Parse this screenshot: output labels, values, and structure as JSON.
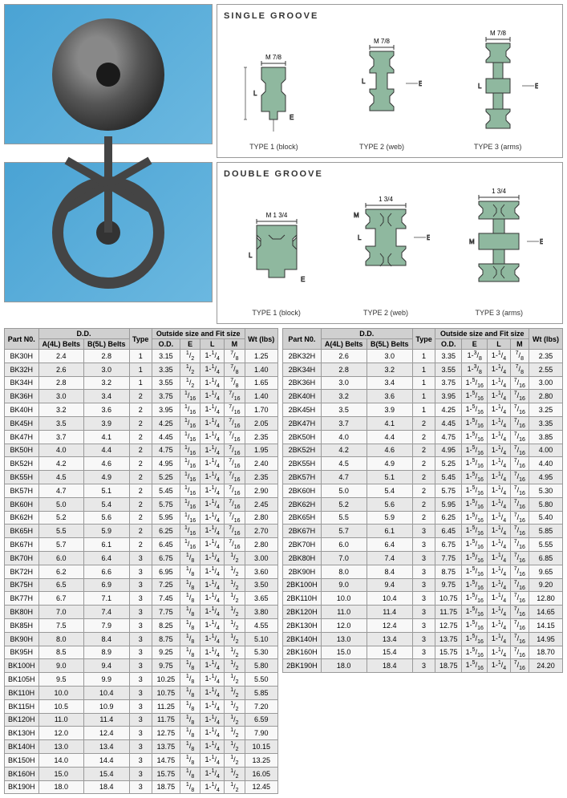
{
  "diagrams": {
    "single_title": "SINGLE GROOVE",
    "double_title": "DOUBLE GROOVE",
    "type1": "TYPE 1 (block)",
    "type2": "TYPE 2 (web)",
    "type3": "TYPE 3 (arms)",
    "M_single": "M 7/8",
    "M_double_t1": "1 3/4",
    "M_double_t2": "1 3/4",
    "M_double_t3": "1 3/4"
  },
  "headers": {
    "part": "Part N0.",
    "dd": "D.D.",
    "a4l": "A(4L) Belts",
    "b5l": "B(5L) Belts",
    "type": "Type",
    "outside": "Outside size and Fit size",
    "od": "O.D.",
    "e": "E",
    "l": "L",
    "m": "M",
    "wt": "Wt (lbs)"
  },
  "table1": [
    [
      "BK30H",
      "2.4",
      "2.8",
      "1",
      "3.15",
      "1/2",
      "1-1/4",
      "7/8",
      "1.25"
    ],
    [
      "BK32H",
      "2.6",
      "3.0",
      "1",
      "3.35",
      "1/2",
      "1-1/4",
      "7/8",
      "1.40"
    ],
    [
      "BK34H",
      "2.8",
      "3.2",
      "1",
      "3.55",
      "1/2",
      "1-1/4",
      "7/8",
      "1.65"
    ],
    [
      "BK36H",
      "3.0",
      "3.4",
      "2",
      "3.75",
      "1/16",
      "1-1/4",
      "7/16",
      "1.40"
    ],
    [
      "BK40H",
      "3.2",
      "3.6",
      "2",
      "3.95",
      "1/16",
      "1-1/4",
      "7/16",
      "1.70"
    ],
    [
      "BK45H",
      "3.5",
      "3.9",
      "2",
      "4.25",
      "1/16",
      "1-1/4",
      "7/16",
      "2.05"
    ],
    [
      "BK47H",
      "3.7",
      "4.1",
      "2",
      "4.45",
      "1/16",
      "1-1/4",
      "7/16",
      "2.35"
    ],
    [
      "BK50H",
      "4.0",
      "4.4",
      "2",
      "4.75",
      "1/16",
      "1-1/4",
      "7/16",
      "1.95"
    ],
    [
      "BK52H",
      "4.2",
      "4.6",
      "2",
      "4.95",
      "1/16",
      "1-1/4",
      "7/16",
      "2.40"
    ],
    [
      "BK55H",
      "4.5",
      "4.9",
      "2",
      "5.25",
      "1/16",
      "1-1/4",
      "7/16",
      "2.35"
    ],
    [
      "BK57H",
      "4.7",
      "5.1",
      "2",
      "5.45",
      "1/16",
      "1-1/4",
      "7/16",
      "2.90"
    ],
    [
      "BK60H",
      "5.0",
      "5.4",
      "2",
      "5.75",
      "1/16",
      "1-1/4",
      "7/16",
      "2.45"
    ],
    [
      "BK62H",
      "5.2",
      "5.6",
      "2",
      "5.95",
      "1/16",
      "1-1/4",
      "7/16",
      "2.80"
    ],
    [
      "BK65H",
      "5.5",
      "5.9",
      "2",
      "6.25",
      "1/16",
      "1-1/4",
      "7/16",
      "2.70"
    ],
    [
      "BK67H",
      "5.7",
      "6.1",
      "2",
      "6.45",
      "1/16",
      "1-1/4",
      "7/16",
      "2.80"
    ],
    [
      "BK70H",
      "6.0",
      "6.4",
      "3",
      "6.75",
      "1/8",
      "1-1/4",
      "1/2",
      "3.00"
    ],
    [
      "BK72H",
      "6.2",
      "6.6",
      "3",
      "6.95",
      "1/8",
      "1-1/4",
      "1/2",
      "3.60"
    ],
    [
      "BK75H",
      "6.5",
      "6.9",
      "3",
      "7.25",
      "1/8",
      "1-1/4",
      "1/2",
      "3.50"
    ],
    [
      "BK77H",
      "6.7",
      "7.1",
      "3",
      "7.45",
      "1/8",
      "1-1/4",
      "1/2",
      "3.65"
    ],
    [
      "BK80H",
      "7.0",
      "7.4",
      "3",
      "7.75",
      "1/8",
      "1-1/4",
      "1/2",
      "3.80"
    ],
    [
      "BK85H",
      "7.5",
      "7.9",
      "3",
      "8.25",
      "1/8",
      "1-1/4",
      "1/2",
      "4.55"
    ],
    [
      "BK90H",
      "8.0",
      "8.4",
      "3",
      "8.75",
      "1/8",
      "1-1/4",
      "1/2",
      "5.10"
    ],
    [
      "BK95H",
      "8.5",
      "8.9",
      "3",
      "9.25",
      "1/8",
      "1-1/4",
      "1/2",
      "5.30"
    ],
    [
      "BK100H",
      "9.0",
      "9.4",
      "3",
      "9.75",
      "1/8",
      "1-1/4",
      "1/2",
      "5.80"
    ],
    [
      "BK105H",
      "9.5",
      "9.9",
      "3",
      "10.25",
      "1/8",
      "1-1/4",
      "1/2",
      "5.50"
    ],
    [
      "BK110H",
      "10.0",
      "10.4",
      "3",
      "10.75",
      "1/8",
      "1-1/4",
      "1/2",
      "5.85"
    ],
    [
      "BK115H",
      "10.5",
      "10.9",
      "3",
      "11.25",
      "1/8",
      "1-1/4",
      "1/2",
      "7.20"
    ],
    [
      "BK120H",
      "11.0",
      "11.4",
      "3",
      "11.75",
      "1/8",
      "1-1/4",
      "1/2",
      "6.59"
    ],
    [
      "BK130H",
      "12.0",
      "12.4",
      "3",
      "12.75",
      "1/8",
      "1-1/4",
      "1/2",
      "7.90"
    ],
    [
      "BK140H",
      "13.0",
      "13.4",
      "3",
      "13.75",
      "1/8",
      "1-1/4",
      "1/2",
      "10.15"
    ],
    [
      "BK150H",
      "14.0",
      "14.4",
      "3",
      "14.75",
      "1/8",
      "1-1/4",
      "1/2",
      "13.25"
    ],
    [
      "BK160H",
      "15.0",
      "15.4",
      "3",
      "15.75",
      "1/8",
      "1-1/4",
      "1/2",
      "16.05"
    ],
    [
      "BK190H",
      "18.0",
      "18.4",
      "3",
      "18.75",
      "1/8",
      "1-1/4",
      "1/2",
      "12.45"
    ]
  ],
  "table2": [
    [
      "2BK32H",
      "2.6",
      "3.0",
      "1",
      "3.35",
      "1-3/8",
      "1-1/4",
      "7/8",
      "2.35"
    ],
    [
      "2BK34H",
      "2.8",
      "3.2",
      "1",
      "3.55",
      "1-3/8",
      "1-1/4",
      "7/8",
      "2.55"
    ],
    [
      "2BK36H",
      "3.0",
      "3.4",
      "1",
      "3.75",
      "1-5/16",
      "1-1/4",
      "7/16",
      "3.00"
    ],
    [
      "2BK40H",
      "3.2",
      "3.6",
      "1",
      "3.95",
      "1-5/16",
      "1-1/4",
      "7/16",
      "2.80"
    ],
    [
      "2BK45H",
      "3.5",
      "3.9",
      "1",
      "4.25",
      "1-5/16",
      "1-1/4",
      "7/16",
      "3.25"
    ],
    [
      "2BK47H",
      "3.7",
      "4.1",
      "2",
      "4.45",
      "1-5/16",
      "1-1/4",
      "7/16",
      "3.35"
    ],
    [
      "2BK50H",
      "4.0",
      "4.4",
      "2",
      "4.75",
      "1-5/16",
      "1-1/4",
      "7/16",
      "3.85"
    ],
    [
      "2BK52H",
      "4.2",
      "4.6",
      "2",
      "4.95",
      "1-5/16",
      "1-1/4",
      "7/16",
      "4.00"
    ],
    [
      "2BK55H",
      "4.5",
      "4.9",
      "2",
      "5.25",
      "1-5/16",
      "1-1/4",
      "7/16",
      "4.40"
    ],
    [
      "2BK57H",
      "4.7",
      "5.1",
      "2",
      "5.45",
      "1-5/16",
      "1-1/4",
      "7/16",
      "4.95"
    ],
    [
      "2BK60H",
      "5.0",
      "5.4",
      "2",
      "5.75",
      "1-5/16",
      "1-1/4",
      "7/16",
      "5.30"
    ],
    [
      "2BK62H",
      "5.2",
      "5.6",
      "2",
      "5.95",
      "1-5/16",
      "1-1/4",
      "7/16",
      "5.80"
    ],
    [
      "2BK65H",
      "5.5",
      "5.9",
      "2",
      "6.25",
      "1-5/16",
      "1-1/4",
      "7/16",
      "5.40"
    ],
    [
      "2BK67H",
      "5.7",
      "6.1",
      "3",
      "6.45",
      "1-5/16",
      "1-1/4",
      "7/16",
      "5.85"
    ],
    [
      "2BK70H",
      "6.0",
      "6.4",
      "3",
      "6.75",
      "1-5/16",
      "1-1/4",
      "7/16",
      "5.55"
    ],
    [
      "2BK80H",
      "7.0",
      "7.4",
      "3",
      "7.75",
      "1-5/16",
      "1-1/4",
      "7/16",
      "6.85"
    ],
    [
      "2BK90H",
      "8.0",
      "8.4",
      "3",
      "8.75",
      "1-5/16",
      "1-1/4",
      "7/16",
      "9.65"
    ],
    [
      "2BK100H",
      "9.0",
      "9.4",
      "3",
      "9.75",
      "1-5/16",
      "1-1/4",
      "7/16",
      "9.20"
    ],
    [
      "2BK110H",
      "10.0",
      "10.4",
      "3",
      "10.75",
      "1-5/16",
      "1-1/4",
      "7/16",
      "12.80"
    ],
    [
      "2BK120H",
      "11.0",
      "11.4",
      "3",
      "11.75",
      "1-5/16",
      "1-1/4",
      "7/16",
      "14.65"
    ],
    [
      "2BK130H",
      "12.0",
      "12.4",
      "3",
      "12.75",
      "1-5/16",
      "1-1/4",
      "7/16",
      "14.15"
    ],
    [
      "2BK140H",
      "13.0",
      "13.4",
      "3",
      "13.75",
      "1-5/16",
      "1-1/4",
      "7/16",
      "14.95"
    ],
    [
      "2BK160H",
      "15.0",
      "15.4",
      "3",
      "15.75",
      "1-5/16",
      "1-1/4",
      "7/16",
      "18.70"
    ],
    [
      "2BK190H",
      "18.0",
      "18.4",
      "3",
      "18.75",
      "1-5/16",
      "1-1/4",
      "7/16",
      "24.20"
    ]
  ]
}
